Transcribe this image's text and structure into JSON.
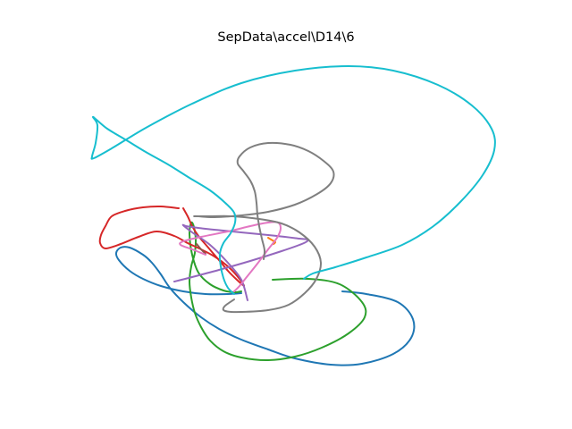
{
  "chart_data": {
    "type": "line",
    "title": "SepData\\accel\\D14\\6",
    "xlabel": "",
    "ylabel": "",
    "axes_visible": false,
    "grid": false,
    "series": [
      {
        "color": "#1f77b4",
        "x": [
          383,
          410,
          445,
          462,
          460,
          440,
          405,
          370,
          330,
          300,
          270,
          245,
          225,
          205,
          190,
          180,
          170,
          160,
          145,
          135,
          130,
          133,
          145,
          160,
          180,
          205,
          230,
          255,
          270
        ],
        "y": [
          326,
          329,
          338,
          357,
          378,
          396,
          407,
          408,
          401,
          391,
          380,
          368,
          355,
          338,
          322,
          307,
          294,
          285,
          277,
          277,
          283,
          291,
          303,
          312,
          320,
          326,
          329,
          329,
          328
        ]
      },
      {
        "color": "#ff7f0e",
        "x": [
          300,
          305,
          308,
          306
        ],
        "y": [
          266,
          269,
          271,
          273
        ]
      },
      {
        "color": "#2ca02c",
        "x": [
          305,
          345,
          380,
          405,
          408,
          390,
          360,
          330,
          300,
          270,
          250,
          235,
          225,
          218,
          214,
          212,
          214,
          218,
          219,
          217,
          214,
          212,
          215,
          222,
          235,
          250,
          262,
          270
        ],
        "y": [
          313,
          312,
          318,
          338,
          355,
          373,
          389,
          399,
          403,
          400,
          393,
          381,
          366,
          350,
          333,
          315,
          298,
          283,
          267,
          254,
          249,
          262,
          285,
          305,
          318,
          325,
          327,
          326
        ]
      },
      {
        "color": "#d62728",
        "x": [
          205,
          210,
          215,
          222,
          233,
          245,
          255,
          265,
          273,
          268,
          256,
          240,
          225,
          210,
          195,
          175,
          155,
          135,
          118,
          112,
          113,
          118,
          125,
          140,
          160,
          180,
          200
        ],
        "y": [
          233,
          242,
          253,
          264,
          277,
          291,
          303,
          313,
          320,
          312,
          299,
          287,
          279,
          272,
          264,
          259,
          265,
          273,
          278,
          272,
          263,
          253,
          242,
          236,
          232,
          231,
          233
        ]
      },
      {
        "color": "#9467bd",
        "x": [
          195,
          215,
          245,
          280,
          315,
          340,
          344,
          335,
          310,
          280,
          250,
          230,
          215,
          208,
          205,
          215,
          235,
          255,
          270,
          277
        ],
        "y": [
          315,
          310,
          302,
          292,
          281,
          272,
          268,
          267,
          264,
          261,
          258,
          256,
          254,
          253,
          252,
          260,
          274,
          294,
          313,
          336
        ]
      },
      {
        "color": "#8c564b",
        "x": [
          220,
          225,
          230
        ],
        "y": [
          273,
          279,
          284
        ]
      },
      {
        "color": "#e377c2",
        "x": [
          230,
          215,
          202,
          205,
          225,
          255,
          280,
          300,
          311,
          314,
          310,
          300,
          288,
          276,
          268,
          262
        ],
        "y": [
          285,
          279,
          274,
          270,
          265,
          259,
          253,
          249,
          249,
          256,
          266,
          279,
          295,
          310,
          320,
          326
        ]
      },
      {
        "color": "#7f7f7f",
        "x": [
          262,
          251,
          252,
          270,
          300,
          323,
          341,
          354,
          359,
          352,
          335,
          315,
          290,
          260,
          235,
          218,
          222,
          240,
          270,
          300,
          330,
          355,
          370,
          373,
          362,
          345,
          325,
          300,
          280,
          268,
          266,
          272,
          280,
          285,
          287,
          288,
          290,
          293,
          296,
          295
        ],
        "y": [
          335,
          343,
          348,
          349,
          347,
          341,
          328,
          312,
          294,
          276,
          260,
          250,
          245,
          242,
          242,
          242,
          242,
          243,
          241,
          237,
          229,
          217,
          205,
          192,
          180,
          169,
          162,
          160,
          165,
          175,
          183,
          191,
          202,
          214,
          227,
          240,
          253,
          267,
          280,
          290
        ]
      },
      {
        "color": "#bcbd22",
        "x": [],
        "y": []
      },
      {
        "color": "#17becf",
        "x": [
          262,
          255,
          250,
          247,
          246,
          250,
          258,
          263,
          262,
          252,
          235,
          212,
          188,
          163,
          140,
          120,
          108,
          104,
          109,
          107,
          103,
          105,
          125,
          165,
          215,
          270,
          330,
          390,
          440,
          490,
          528,
          550,
          553,
          540,
          515,
          485,
          450,
          410,
          375,
          350,
          340
        ],
        "y": [
          329,
          322,
          311,
          298,
          284,
          272,
          261,
          249,
          238,
          227,
          213,
          199,
          184,
          170,
          156,
          144,
          134,
          131,
          140,
          160,
          175,
          177,
          166,
          142,
          116,
          93,
          79,
          74,
          79,
          95,
          118,
          144,
          168,
          196,
          226,
          253,
          274,
          288,
          299,
          306,
          312
        ]
      }
    ]
  }
}
